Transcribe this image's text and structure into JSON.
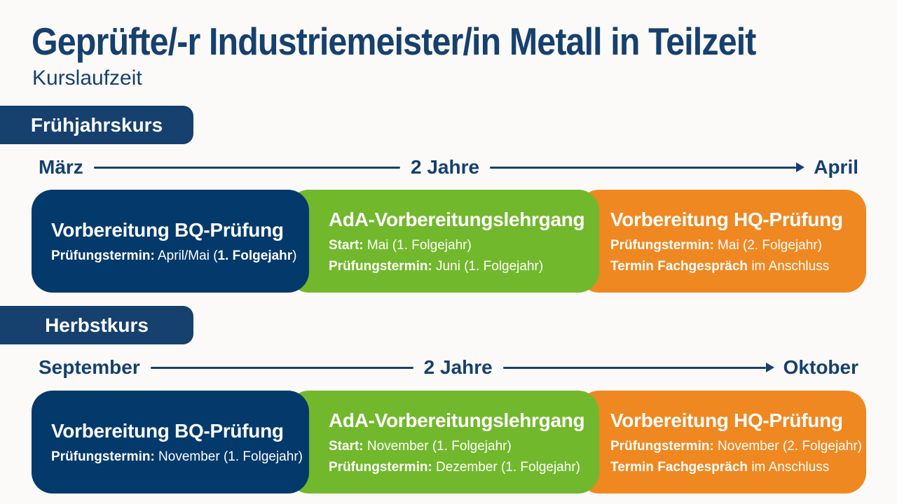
{
  "page": {
    "title": "Geprüfte/-r Industriemeister/in Metall in Teilzeit",
    "subtitle": "Kurslaufzeit"
  },
  "colors": {
    "navy_block": "#04396b",
    "navy_text": "#16406e",
    "green": "#72b82c",
    "orange": "#ef8821",
    "background": "#fbfaf8",
    "white": "#ffffff"
  },
  "sections": [
    {
      "badge": "Frühjahrskurs",
      "timeline": {
        "start": "März",
        "middle": "2 Jahre",
        "end": "April"
      },
      "blocks": [
        {
          "color_key": "navy_block",
          "title": "Vorbereitung BQ-Prüfung",
          "lines": [
            [
              {
                "text": "Prüfungstermin:",
                "bold": true
              },
              {
                "text": " April/Mai (",
                "bold": false
              },
              {
                "text": "1. Folgejahr",
                "bold": true
              },
              {
                "text": ")",
                "bold": false
              }
            ]
          ]
        },
        {
          "color_key": "green",
          "title": "AdA-Vorbereitungslehrgang",
          "lines": [
            [
              {
                "text": "Start:",
                "bold": true
              },
              {
                "text": " Mai (1. Folgejahr)",
                "bold": false
              }
            ],
            [
              {
                "text": "Prüfungstermin:",
                "bold": true
              },
              {
                "text": " Juni (1. Folgejahr)",
                "bold": false
              }
            ]
          ]
        },
        {
          "color_key": "orange",
          "title": "Vorbereitung HQ-Prüfung",
          "lines": [
            [
              {
                "text": "Prüfungstermin:",
                "bold": true
              },
              {
                "text": " Mai (2. Folgejahr)",
                "bold": false
              }
            ],
            [
              {
                "text": "Termin Fachgespräch",
                "bold": true
              },
              {
                "text": " im Anschluss",
                "bold": false
              }
            ]
          ]
        }
      ]
    },
    {
      "badge": "Herbstkurs",
      "timeline": {
        "start": "September",
        "middle": "2 Jahre",
        "end": "Oktober"
      },
      "blocks": [
        {
          "color_key": "navy_block",
          "title": "Vorbereitung BQ-Prüfung",
          "lines": [
            [
              {
                "text": "Prüfungstermin:",
                "bold": true
              },
              {
                "text": " November (1. Folgejahr)",
                "bold": false
              }
            ]
          ]
        },
        {
          "color_key": "green",
          "title": "AdA-Vorbereitungslehrgang",
          "lines": [
            [
              {
                "text": "Start:",
                "bold": true
              },
              {
                "text": " November (1. Folgejahr)",
                "bold": false
              }
            ],
            [
              {
                "text": "Prüfungstermin:",
                "bold": true
              },
              {
                "text": " Dezember (1. Folgejahr)",
                "bold": false
              }
            ]
          ]
        },
        {
          "color_key": "orange",
          "title": "Vorbereitung HQ-Prüfung",
          "lines": [
            [
              {
                "text": "Prüfungstermin:",
                "bold": true
              },
              {
                "text": " November (2. Folgejahr)",
                "bold": false
              }
            ],
            [
              {
                "text": "Termin Fachgespräch",
                "bold": true
              },
              {
                "text": " im Anschluss",
                "bold": false
              }
            ]
          ]
        }
      ]
    }
  ]
}
